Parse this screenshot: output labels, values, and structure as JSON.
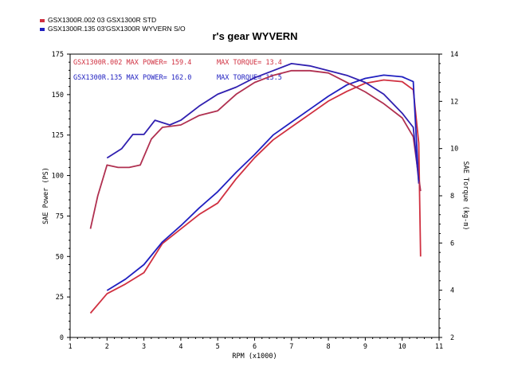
{
  "legend": [
    {
      "label": "GSX1300R.002   03 GSX1300R STD",
      "color": "#d03040"
    },
    {
      "label": "GSX1300R.135   03'GSX1300R WYVERN S/O",
      "color": "#2020c0"
    }
  ],
  "annotations": {
    "red_power": "GSX1300R.002  MAX POWER= 159.4",
    "red_torque": "MAX TORQUE= 13.4",
    "blue_power": "GSX1300R.135  MAX POWER= 162.0",
    "blue_torque": "MAX TORQUE= 13.5"
  },
  "chart_data": {
    "type": "line",
    "title": "r's gear WYVERN",
    "xlabel": "RPM (x1000)",
    "ylabel_left": "SAE Power (PS)",
    "ylabel_right": "SAE Torque (kg-m)",
    "xlim": [
      1,
      11
    ],
    "ylim_left": [
      0,
      175
    ],
    "ylim_right": [
      2,
      14
    ],
    "x_ticks": [
      1,
      2,
      3,
      4,
      5,
      6,
      7,
      8,
      9,
      10,
      11
    ],
    "y_ticks_left": [
      0,
      25,
      50,
      75,
      100,
      125,
      150,
      175
    ],
    "y_ticks_right": [
      2,
      4,
      6,
      8,
      10,
      12,
      14
    ],
    "grid": false,
    "series": [
      {
        "name": "GSX1300R.002",
        "axis": "left",
        "color": "#d03040",
        "x": [
          1.55,
          2.0,
          2.5,
          3.0,
          3.5,
          4.0,
          4.5,
          5.0,
          5.5,
          6.0,
          6.5,
          7.0,
          7.5,
          8.0,
          8.5,
          9.0,
          9.5,
          10.0,
          10.3,
          10.45,
          10.5
        ],
        "y": [
          15,
          27,
          33,
          40,
          58,
          67,
          76,
          83,
          98,
          111,
          122,
          130,
          138,
          146,
          152,
          157,
          159,
          158,
          153,
          120,
          50
        ]
      },
      {
        "name": "GSX1300R.135",
        "axis": "left",
        "color": "#2020c0",
        "x": [
          2.0,
          2.5,
          3.0,
          3.5,
          4.0,
          4.5,
          5.0,
          5.5,
          6.0,
          6.5,
          7.0,
          7.5,
          8.0,
          8.5,
          9.0,
          9.5,
          10.0,
          10.3,
          10.45
        ],
        "y": [
          29,
          36,
          45,
          59,
          69,
          80,
          90,
          102,
          113,
          125,
          133,
          141,
          149,
          156,
          160,
          162,
          161,
          158,
          95
        ]
      },
      {
        "name": "GSX1300R.002",
        "axis": "right",
        "color": "#b03050",
        "x": [
          1.55,
          1.75,
          2.0,
          2.3,
          2.6,
          2.9,
          3.2,
          3.5,
          4.0,
          4.5,
          5.0,
          5.5,
          6.0,
          6.5,
          7.0,
          7.5,
          8.0,
          8.5,
          9.0,
          9.5,
          10.0,
          10.3,
          10.5
        ],
        "y": [
          6.6,
          8.0,
          9.3,
          9.2,
          9.2,
          9.3,
          10.4,
          10.9,
          11.0,
          11.4,
          11.6,
          12.3,
          12.8,
          13.1,
          13.3,
          13.3,
          13.2,
          12.8,
          12.4,
          11.9,
          11.3,
          10.5,
          8.2
        ]
      },
      {
        "name": "GSX1300R.135",
        "axis": "right",
        "color": "#3020b0",
        "x": [
          2.0,
          2.4,
          2.7,
          3.0,
          3.3,
          3.7,
          4.0,
          4.5,
          5.0,
          5.5,
          6.0,
          6.5,
          7.0,
          7.5,
          8.0,
          8.5,
          9.0,
          9.5,
          10.0,
          10.3,
          10.45
        ],
        "y": [
          9.6,
          10.0,
          10.6,
          10.6,
          11.2,
          11.0,
          11.2,
          11.8,
          12.3,
          12.6,
          13.0,
          13.3,
          13.6,
          13.5,
          13.3,
          13.1,
          12.8,
          12.3,
          11.5,
          10.9,
          8.6
        ]
      }
    ]
  }
}
